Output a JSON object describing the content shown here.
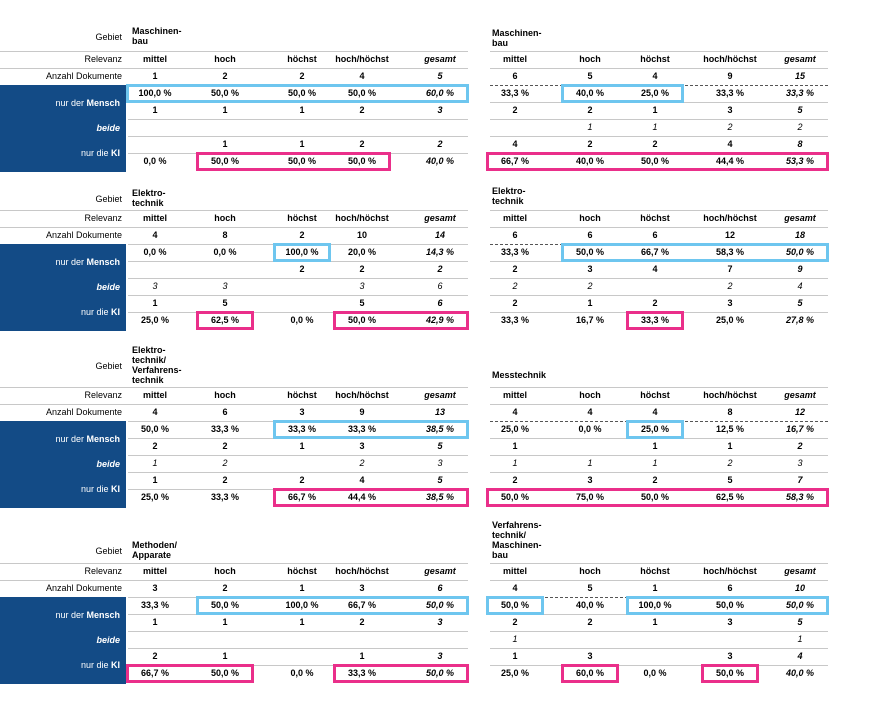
{
  "columns": [
    "mittel",
    "hoch",
    "höchst",
    "hoch/höchst",
    "gesamt"
  ],
  "labels": {
    "gebiet": "Gebiet",
    "relevanz": "Relevanz",
    "anzahl": "Anzahl Dokumente",
    "mensch_pre": "nur der ",
    "mensch_bold": "Mensch",
    "beide": "beide",
    "ki_pre": "nur die ",
    "ki_bold": "KI"
  },
  "panels": [
    {
      "id": "p1",
      "title": "Maschinen-\nbau",
      "side": "left",
      "anzahl": [
        "1",
        "2",
        "2",
        "4",
        "5"
      ],
      "rows": [
        [
          "100,0 %",
          "50,0 %",
          "50,0 %",
          "50,0 %",
          "60,0 %"
        ],
        [
          "1",
          "1",
          "1",
          "2",
          "3"
        ],
        [
          "",
          "",
          "",
          "",
          ""
        ],
        [
          "",
          "1",
          "1",
          "2",
          "2"
        ],
        [
          "0,0 %",
          "50,0 %",
          "50,0 %",
          "50,0 %",
          "40,0 %"
        ]
      ]
    },
    {
      "id": "p2",
      "title": "Maschinen-\nbau",
      "side": "right",
      "anzahl": [
        "6",
        "5",
        "4",
        "9",
        "15"
      ],
      "rows": [
        [
          "33,3 %",
          "40,0 %",
          "25,0 %",
          "33,3 %",
          "33,3 %"
        ],
        [
          "2",
          "2",
          "1",
          "3",
          "5"
        ],
        [
          "",
          "1",
          "1",
          "2",
          "2"
        ],
        [
          "4",
          "2",
          "2",
          "4",
          "8"
        ],
        [
          "66,7 %",
          "40,0 %",
          "50,0 %",
          "44,4 %",
          "53,3 %"
        ]
      ]
    },
    {
      "id": "p3",
      "title": "Elektro-\ntechnik",
      "side": "left",
      "anzahl": [
        "4",
        "8",
        "2",
        "10",
        "14"
      ],
      "rows": [
        [
          "0,0 %",
          "0,0 %",
          "100,0 %",
          "20,0 %",
          "14,3 %"
        ],
        [
          "",
          "",
          "2",
          "2",
          "2"
        ],
        [
          "3",
          "3",
          "",
          "3",
          "6"
        ],
        [
          "1",
          "5",
          "",
          "5",
          "6"
        ],
        [
          "25,0 %",
          "62,5 %",
          "0,0 %",
          "50,0 %",
          "42,9 %"
        ]
      ]
    },
    {
      "id": "p4",
      "title": "Elektro-\ntechnik",
      "side": "right",
      "anzahl": [
        "6",
        "6",
        "6",
        "12",
        "18"
      ],
      "rows": [
        [
          "33,3 %",
          "50,0 %",
          "66,7 %",
          "58,3 %",
          "50,0 %"
        ],
        [
          "2",
          "3",
          "4",
          "7",
          "9"
        ],
        [
          "2",
          "2",
          "",
          "2",
          "4"
        ],
        [
          "2",
          "1",
          "2",
          "3",
          "5"
        ],
        [
          "33,3 %",
          "16,7 %",
          "33,3 %",
          "25,0 %",
          "27,8 %"
        ]
      ]
    },
    {
      "id": "p5",
      "title": "Elektro-\ntechnik/\nVerfahrens-\ntechnik",
      "side": "left",
      "anzahl": [
        "4",
        "6",
        "3",
        "9",
        "13"
      ],
      "rows": [
        [
          "50,0 %",
          "33,3 %",
          "33,3 %",
          "33,3 %",
          "38,5 %"
        ],
        [
          "2",
          "2",
          "1",
          "3",
          "5"
        ],
        [
          "1",
          "2",
          "",
          "2",
          "3"
        ],
        [
          "1",
          "2",
          "2",
          "4",
          "5"
        ],
        [
          "25,0 %",
          "33,3 %",
          "66,7 %",
          "44,4 %",
          "38,5 %"
        ]
      ]
    },
    {
      "id": "p6",
      "title": "Messtechnik",
      "side": "right",
      "anzahl": [
        "4",
        "4",
        "4",
        "8",
        "12"
      ],
      "rows": [
        [
          "25,0 %",
          "0,0 %",
          "25,0 %",
          "12,5 %",
          "16,7 %"
        ],
        [
          "1",
          "",
          "1",
          "1",
          "2"
        ],
        [
          "1",
          "1",
          "1",
          "2",
          "3"
        ],
        [
          "2",
          "3",
          "2",
          "5",
          "7"
        ],
        [
          "50,0 %",
          "75,0 %",
          "50,0 %",
          "62,5 %",
          "58,3 %"
        ]
      ]
    },
    {
      "id": "p7",
      "title": "Methoden/\nApparate",
      "side": "left",
      "anzahl": [
        "3",
        "2",
        "1",
        "3",
        "6"
      ],
      "rows": [
        [
          "33,3 %",
          "50,0 %",
          "100,0 %",
          "66,7 %",
          "50,0 %"
        ],
        [
          "1",
          "1",
          "1",
          "2",
          "3"
        ],
        [
          "",
          "",
          "",
          "",
          ""
        ],
        [
          "2",
          "1",
          "",
          "1",
          "3"
        ],
        [
          "66,7 %",
          "50,0 %",
          "0,0 %",
          "33,3 %",
          "50,0 %"
        ]
      ]
    },
    {
      "id": "p8",
      "title": "Verfahrens-\ntechnik/\nMaschinen-\nbau",
      "side": "right",
      "anzahl": [
        "4",
        "5",
        "1",
        "6",
        "10"
      ],
      "rows": [
        [
          "50,0 %",
          "40,0 %",
          "100,0 %",
          "50,0 %",
          "50,0 %"
        ],
        [
          "2",
          "2",
          "1",
          "3",
          "5"
        ],
        [
          "1",
          "",
          "",
          "",
          "1"
        ],
        [
          "1",
          "3",
          "",
          "3",
          "4"
        ],
        [
          "25,0 %",
          "60,0 %",
          "0,0 %",
          "50,0 %",
          "40,0 %"
        ]
      ]
    }
  ],
  "colors": {
    "blue_box": "#6ec6ef",
    "pink_box": "#ea2f8a",
    "side_bar": "#134b86"
  }
}
